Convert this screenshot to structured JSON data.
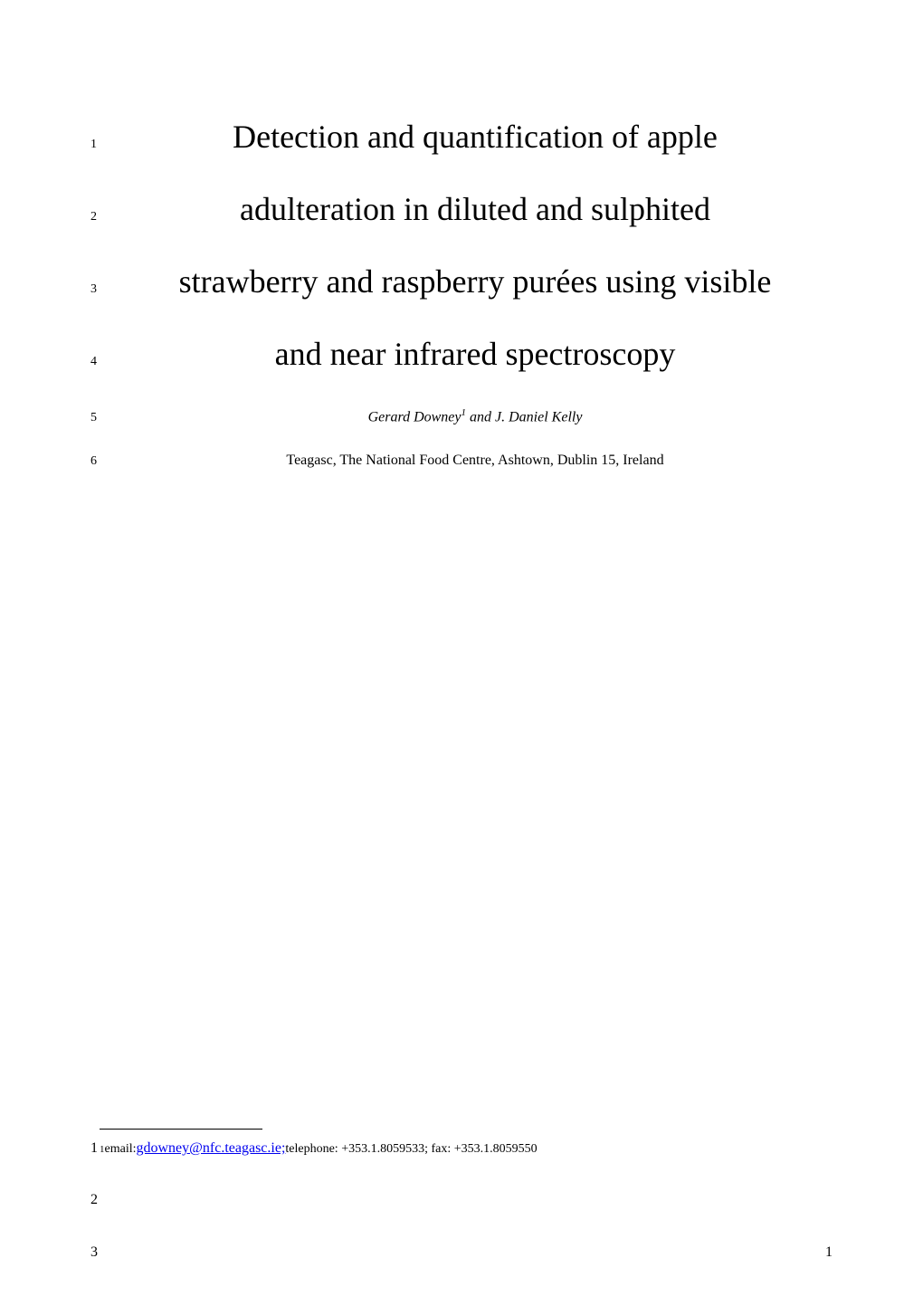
{
  "title": {
    "lines": [
      {
        "number": "1",
        "text": "Detection and quantification of apple"
      },
      {
        "number": "2",
        "text": "adulteration in diluted and sulphited"
      },
      {
        "number": "3",
        "text": "strawberry and raspberry purées using visible"
      },
      {
        "number": "4",
        "text": "and near infrared spectroscopy"
      }
    ]
  },
  "authors": {
    "line_number": "5",
    "name1": "Gerard Downey",
    "sup": "1",
    "connector": " and  ",
    "name2": "J. Daniel Kelly"
  },
  "affiliation": {
    "line_number": "6",
    "text": "Teagasc, The National Food Centre, Ashtown, Dublin 15, Ireland"
  },
  "footnote": {
    "leading_num": "1",
    "sup": "1",
    "prefix": " email: ",
    "email": "gdowney@nfc.teagasc.ie;",
    "suffix": " telephone: +353.1.8059533; fax: +353.1.8059550"
  },
  "bottom_numbers": {
    "n2": "2",
    "n3": "3"
  },
  "page_number": "1",
  "colors": {
    "background": "#ffffff",
    "text": "#000000",
    "link": "#0000ee"
  },
  "typography": {
    "title_fontsize": 36,
    "line_number_fontsize": 14,
    "author_fontsize": 16,
    "affiliation_fontsize": 16,
    "footnote_fontsize": 14,
    "font_family": "Times New Roman"
  }
}
